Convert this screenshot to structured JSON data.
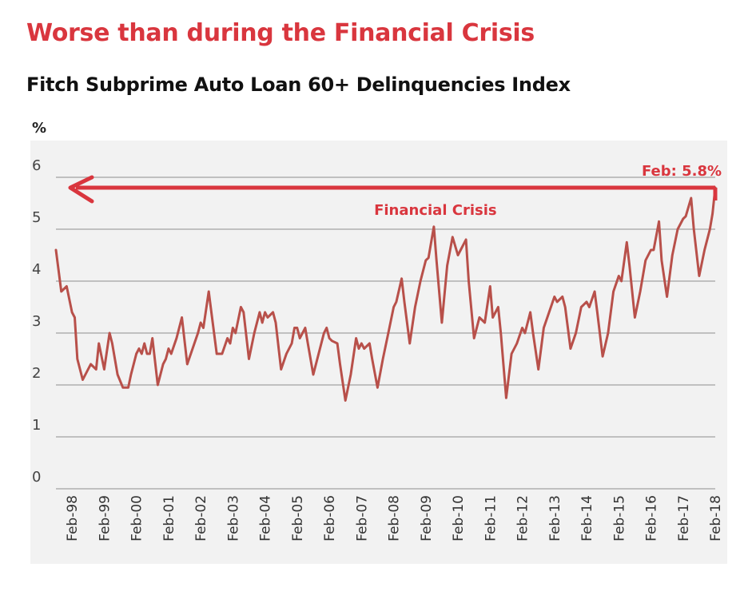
{
  "headline": "Worse than during the Financial Crisis",
  "colors": {
    "headline": "#d9363e",
    "line": "#b8504a",
    "arrow": "#d9363e",
    "plot_background": "#f2f2f2",
    "grid": "#b0b0b0"
  },
  "chart_data": {
    "type": "line",
    "title": "Fitch Subprime Auto Loan 60+ Delinquencies Index",
    "ylabel": "%",
    "xlabel": "",
    "ylim": [
      0,
      6
    ],
    "yticks": [
      0,
      1,
      2,
      3,
      4,
      5,
      6
    ],
    "xlim": [
      "1997-08",
      "2018-02"
    ],
    "x_tick_labels": [
      "Feb-98",
      "Feb-99",
      "Feb-00",
      "Feb-01",
      "Feb-02",
      "Feb-03",
      "Feb-04",
      "Feb-05",
      "Feb-06",
      "Feb-07",
      "Feb-08",
      "Feb-09",
      "Feb-10",
      "Feb-11",
      "Feb-12",
      "Feb-13",
      "Feb-14",
      "Feb-15",
      "Feb-16",
      "Feb-17",
      "Feb-18"
    ],
    "grid": true,
    "legend": "none",
    "series": [
      {
        "points": [
          [
            "1997-08",
            4.6
          ],
          [
            "1997-10",
            3.8
          ],
          [
            "1997-12",
            3.9
          ],
          [
            "1998-02",
            3.4
          ],
          [
            "1998-03",
            3.3
          ],
          [
            "1998-04",
            2.5
          ],
          [
            "1998-06",
            2.1
          ],
          [
            "1998-08",
            2.3
          ],
          [
            "1998-09",
            2.4
          ],
          [
            "1998-11",
            2.3
          ],
          [
            "1998-12",
            2.8
          ],
          [
            "1999-02",
            2.3
          ],
          [
            "1999-04",
            3.0
          ],
          [
            "1999-05",
            2.8
          ],
          [
            "1999-07",
            2.2
          ],
          [
            "1999-09",
            1.95
          ],
          [
            "1999-11",
            1.95
          ],
          [
            "1999-12",
            2.2
          ],
          [
            "2000-02",
            2.6
          ],
          [
            "2000-03",
            2.7
          ],
          [
            "2000-04",
            2.6
          ],
          [
            "2000-05",
            2.8
          ],
          [
            "2000-06",
            2.6
          ],
          [
            "2000-07",
            2.6
          ],
          [
            "2000-08",
            2.9
          ],
          [
            "2000-10",
            2.0
          ],
          [
            "2000-12",
            2.4
          ],
          [
            "2001-01",
            2.5
          ],
          [
            "2001-02",
            2.7
          ],
          [
            "2001-03",
            2.6
          ],
          [
            "2001-05",
            2.9
          ],
          [
            "2001-07",
            3.3
          ],
          [
            "2001-09",
            2.4
          ],
          [
            "2001-11",
            2.7
          ],
          [
            "2002-01",
            3.0
          ],
          [
            "2002-02",
            3.2
          ],
          [
            "2002-03",
            3.1
          ],
          [
            "2002-05",
            3.8
          ],
          [
            "2002-06",
            3.4
          ],
          [
            "2002-08",
            2.6
          ],
          [
            "2002-10",
            2.6
          ],
          [
            "2002-12",
            2.9
          ],
          [
            "2003-01",
            2.8
          ],
          [
            "2003-02",
            3.1
          ],
          [
            "2003-03",
            3.0
          ],
          [
            "2003-05",
            3.5
          ],
          [
            "2003-06",
            3.4
          ],
          [
            "2003-08",
            2.5
          ],
          [
            "2003-10",
            3.0
          ],
          [
            "2003-12",
            3.4
          ],
          [
            "2004-01",
            3.2
          ],
          [
            "2004-02",
            3.4
          ],
          [
            "2004-03",
            3.3
          ],
          [
            "2004-05",
            3.4
          ],
          [
            "2004-06",
            3.2
          ],
          [
            "2004-08",
            2.3
          ],
          [
            "2004-10",
            2.6
          ],
          [
            "2004-12",
            2.8
          ],
          [
            "2005-01",
            3.1
          ],
          [
            "2005-02",
            3.1
          ],
          [
            "2005-03",
            2.9
          ],
          [
            "2005-05",
            3.1
          ],
          [
            "2005-06",
            2.8
          ],
          [
            "2005-08",
            2.2
          ],
          [
            "2005-10",
            2.6
          ],
          [
            "2005-12",
            3.0
          ],
          [
            "2006-01",
            3.1
          ],
          [
            "2006-02",
            2.9
          ],
          [
            "2006-03",
            2.85
          ],
          [
            "2006-05",
            2.8
          ],
          [
            "2006-06",
            2.4
          ],
          [
            "2006-08",
            1.7
          ],
          [
            "2006-10",
            2.2
          ],
          [
            "2006-12",
            2.9
          ],
          [
            "2007-01",
            2.7
          ],
          [
            "2007-02",
            2.8
          ],
          [
            "2007-03",
            2.7
          ],
          [
            "2007-05",
            2.8
          ],
          [
            "2007-06",
            2.5
          ],
          [
            "2007-08",
            1.95
          ],
          [
            "2007-10",
            2.5
          ],
          [
            "2007-12",
            3.0
          ],
          [
            "2008-02",
            3.5
          ],
          [
            "2008-03",
            3.6
          ],
          [
            "2008-05",
            4.05
          ],
          [
            "2008-06",
            3.6
          ],
          [
            "2008-08",
            2.8
          ],
          [
            "2008-10",
            3.5
          ],
          [
            "2008-12",
            4.0
          ],
          [
            "2009-02",
            4.4
          ],
          [
            "2009-03",
            4.45
          ],
          [
            "2009-05",
            5.05
          ],
          [
            "2009-06",
            4.4
          ],
          [
            "2009-08",
            3.2
          ],
          [
            "2009-10",
            4.3
          ],
          [
            "2009-12",
            4.85
          ],
          [
            "2010-02",
            4.5
          ],
          [
            "2010-03",
            4.6
          ],
          [
            "2010-05",
            4.8
          ],
          [
            "2010-06",
            4.0
          ],
          [
            "2010-08",
            2.9
          ],
          [
            "2010-10",
            3.3
          ],
          [
            "2010-12",
            3.2
          ],
          [
            "2011-02",
            3.9
          ],
          [
            "2011-03",
            3.3
          ],
          [
            "2011-05",
            3.5
          ],
          [
            "2011-06",
            3.0
          ],
          [
            "2011-08",
            1.75
          ],
          [
            "2011-10",
            2.6
          ],
          [
            "2011-12",
            2.8
          ],
          [
            "2012-02",
            3.1
          ],
          [
            "2012-03",
            3.0
          ],
          [
            "2012-05",
            3.4
          ],
          [
            "2012-06",
            3.0
          ],
          [
            "2012-08",
            2.3
          ],
          [
            "2012-10",
            3.1
          ],
          [
            "2012-12",
            3.4
          ],
          [
            "2013-02",
            3.7
          ],
          [
            "2013-03",
            3.6
          ],
          [
            "2013-05",
            3.7
          ],
          [
            "2013-06",
            3.5
          ],
          [
            "2013-08",
            2.7
          ],
          [
            "2013-10",
            3.0
          ],
          [
            "2013-12",
            3.5
          ],
          [
            "2014-02",
            3.6
          ],
          [
            "2014-03",
            3.5
          ],
          [
            "2014-05",
            3.8
          ],
          [
            "2014-06",
            3.4
          ],
          [
            "2014-08",
            2.55
          ],
          [
            "2014-10",
            3.0
          ],
          [
            "2014-12",
            3.8
          ],
          [
            "2015-02",
            4.1
          ],
          [
            "2015-03",
            4.0
          ],
          [
            "2015-05",
            4.75
          ],
          [
            "2015-06",
            4.3
          ],
          [
            "2015-08",
            3.3
          ],
          [
            "2015-10",
            3.8
          ],
          [
            "2015-12",
            4.4
          ],
          [
            "2016-02",
            4.6
          ],
          [
            "2016-03",
            4.6
          ],
          [
            "2016-05",
            5.15
          ],
          [
            "2016-06",
            4.4
          ],
          [
            "2016-08",
            3.7
          ],
          [
            "2016-10",
            4.5
          ],
          [
            "2016-12",
            5.0
          ],
          [
            "2017-02",
            5.2
          ],
          [
            "2017-03",
            5.25
          ],
          [
            "2017-05",
            5.6
          ],
          [
            "2017-06",
            5.0
          ],
          [
            "2017-08",
            4.1
          ],
          [
            "2017-10",
            4.6
          ],
          [
            "2017-12",
            5.0
          ],
          [
            "2018-01",
            5.3
          ],
          [
            "2018-02",
            5.8
          ]
        ]
      }
    ],
    "annotations": [
      {
        "text": "Feb: 5.8%",
        "x": "2018-02",
        "y": 5.8
      },
      {
        "text": "Financial Crisis",
        "x": "2009-05",
        "y": 5.05
      }
    ]
  }
}
